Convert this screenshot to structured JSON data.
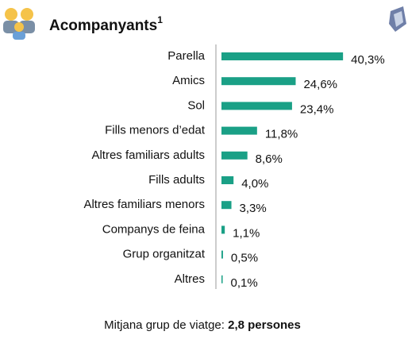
{
  "chart_data": {
    "type": "bar",
    "orientation": "horizontal",
    "title": "Acompanyants",
    "title_superscript": "1",
    "categories": [
      "Parella",
      "Amics",
      "Sol",
      "Fills menors d’edat",
      "Altres familiars adults",
      "Fills adults",
      "Altres familiars menors",
      "Companys de feina",
      "Grup organitzat",
      "Altres"
    ],
    "values": [
      40.3,
      24.6,
      23.4,
      11.8,
      8.6,
      4.0,
      3.3,
      1.1,
      0.5,
      0.1
    ],
    "value_labels": [
      "40,3%",
      "24,6%",
      "23,4%",
      "11,8%",
      "8,6%",
      "4,0%",
      "3,3%",
      "1,1%",
      "0,5%",
      "0,1%"
    ],
    "color": "#1aa086",
    "footnote_label": "Mitjana grup de viatge: ",
    "footnote_value": "2,8 persones"
  }
}
